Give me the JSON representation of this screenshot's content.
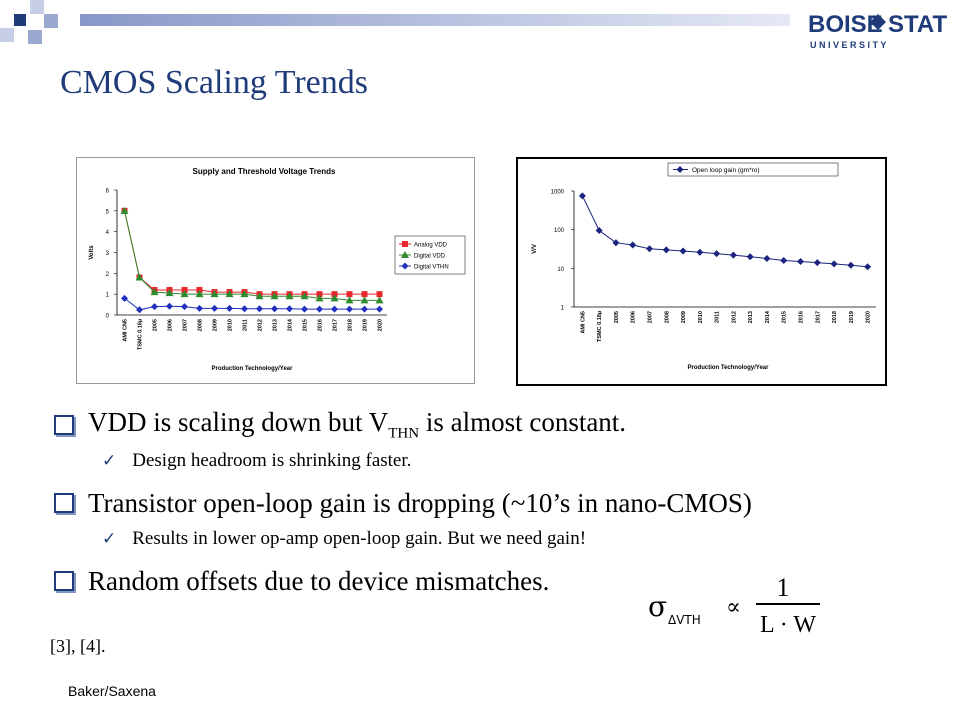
{
  "slide": {
    "title": "CMOS Scaling Trends",
    "logo": {
      "line1_left": "BOISE",
      "line1_right": "STATE",
      "line2": "U N I V E R S I T Y"
    },
    "footer": "Baker/Saxena",
    "refs": "[3], [4].",
    "colors": {
      "title": "#1f3b7a",
      "deco_dark": "#1f3b7a",
      "deco_light": "#9aa9cf"
    }
  },
  "bullets": {
    "b1_pre": "VDD is scaling down but V",
    "b1_sub": "THN",
    "b1_post": " is almost constant.",
    "b1_sub1": "Design headroom is shrinking faster.",
    "b2": "Transistor open-loop gain is dropping (~10’s in nano-CMOS)",
    "b2_sub1": "Results in lower op-amp open-loop gain. But we need gain!",
    "b3": "Random offsets due to device mismatches."
  },
  "formula": {
    "sigma": "σ",
    "subscript": "ΔVTH",
    "prop": "∝",
    "numerator": "1",
    "denominator": "L · W"
  },
  "chart_data": [
    {
      "type": "line",
      "title": "Supply and Threshold Voltage Trends",
      "xlabel": "Production Technology/Year",
      "ylabel": "Volts",
      "categories": [
        "AMI CN5",
        "TSMC 0.18µ",
        "2005",
        "2006",
        "2007",
        "2008",
        "2009",
        "2010",
        "2011",
        "2012",
        "2013",
        "2014",
        "2015",
        "2016",
        "2017",
        "2018",
        "2019",
        "2020"
      ],
      "ylim": [
        0,
        6
      ],
      "yticks": [
        "0",
        "1",
        "2",
        "3",
        "4",
        "5",
        "6"
      ],
      "legend_position": "right",
      "series": [
        {
          "name": "Analog VDD",
          "color": "#e8262b",
          "marker": "square",
          "values": [
            5,
            1.8,
            1.2,
            1.2,
            1.2,
            1.2,
            1.1,
            1.1,
            1.1,
            1.0,
            1.0,
            1.0,
            1.0,
            1.0,
            1.0,
            1.0,
            1.0,
            1.0
          ]
        },
        {
          "name": "Digital VDD",
          "color": "#2e8b2e",
          "marker": "triangle",
          "values": [
            5,
            1.8,
            1.1,
            1.05,
            1.0,
            1.0,
            1.0,
            1.0,
            1.0,
            0.9,
            0.9,
            0.9,
            0.9,
            0.8,
            0.8,
            0.7,
            0.7,
            0.7
          ]
        },
        {
          "name": "Digital VTHN",
          "color": "#2230c0",
          "marker": "diamond",
          "values": [
            0.8,
            0.25,
            0.4,
            0.42,
            0.4,
            0.32,
            0.32,
            0.32,
            0.3,
            0.3,
            0.3,
            0.3,
            0.28,
            0.28,
            0.28,
            0.28,
            0.28,
            0.28
          ]
        }
      ]
    },
    {
      "type": "line",
      "title": "",
      "xlabel": "Production Technology/Year",
      "ylabel": "V/V",
      "scale": "log",
      "categories": [
        "AMI CN5",
        "TSMC 0.18µ",
        "2005",
        "2006",
        "2007",
        "2008",
        "2009",
        "2010",
        "2011",
        "2012",
        "2013",
        "2014",
        "2015",
        "2016",
        "2017",
        "2018",
        "2019",
        "2020"
      ],
      "ylim": [
        1,
        1000
      ],
      "yticks": [
        "1",
        "10",
        "100",
        "1000"
      ],
      "legend_position": "top",
      "series": [
        {
          "name": "Open loop gain (gm*ro)",
          "color": "#1a237e",
          "marker": "diamond",
          "values": [
            750,
            95,
            46,
            40,
            32,
            30,
            28,
            26,
            24,
            22,
            20,
            18,
            16,
            15,
            14,
            13,
            12,
            11
          ]
        }
      ]
    }
  ]
}
